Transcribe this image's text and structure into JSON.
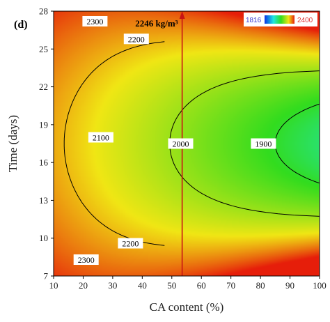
{
  "panel_label": "(d)",
  "colors": {
    "low": "#0a32e6",
    "mid_cyan": "#1ee8e0",
    "mid_green": "#32dc1e",
    "high_yellow": "#f0e614",
    "high_red": "#e61e0a",
    "marker_line": "#c81414",
    "contour": "#000000"
  },
  "chart_data": {
    "type": "heatmap",
    "subtype": "contour",
    "xlabel": "CA content (%)",
    "ylabel": "Time (days)",
    "xlim": [
      10,
      100
    ],
    "ylim": [
      7,
      28
    ],
    "xticks": [
      10,
      20,
      30,
      40,
      50,
      60,
      70,
      80,
      90,
      100
    ],
    "yticks": [
      7,
      10,
      13,
      16,
      19,
      22,
      25,
      28
    ],
    "color_range": {
      "min": 1816,
      "max": 2400
    },
    "legend": {
      "min_label": "1816",
      "max_label": "2400",
      "placement": "top-right"
    },
    "contour_levels": [
      {
        "value": 2300,
        "label": "2300"
      },
      {
        "value": 2200,
        "label": "2200"
      },
      {
        "value": 2100,
        "label": "2100"
      },
      {
        "value": 2000,
        "label": "2000"
      },
      {
        "value": 1900,
        "label": "1900"
      }
    ],
    "contour_labels": [
      {
        "text": "2300",
        "x": 24,
        "y": 27.2
      },
      {
        "text": "2200",
        "x": 38,
        "y": 25.8
      },
      {
        "text": "2100",
        "x": 26,
        "y": 18.0
      },
      {
        "text": "2000",
        "x": 53,
        "y": 17.5
      },
      {
        "text": "1900",
        "x": 81,
        "y": 17.5
      },
      {
        "text": "2200",
        "x": 36,
        "y": 9.6
      },
      {
        "text": "2300",
        "x": 21,
        "y": 8.3
      }
    ],
    "marker": {
      "x": 53.5,
      "label": "2246 kg/m³",
      "label_y": 27.0
    }
  }
}
